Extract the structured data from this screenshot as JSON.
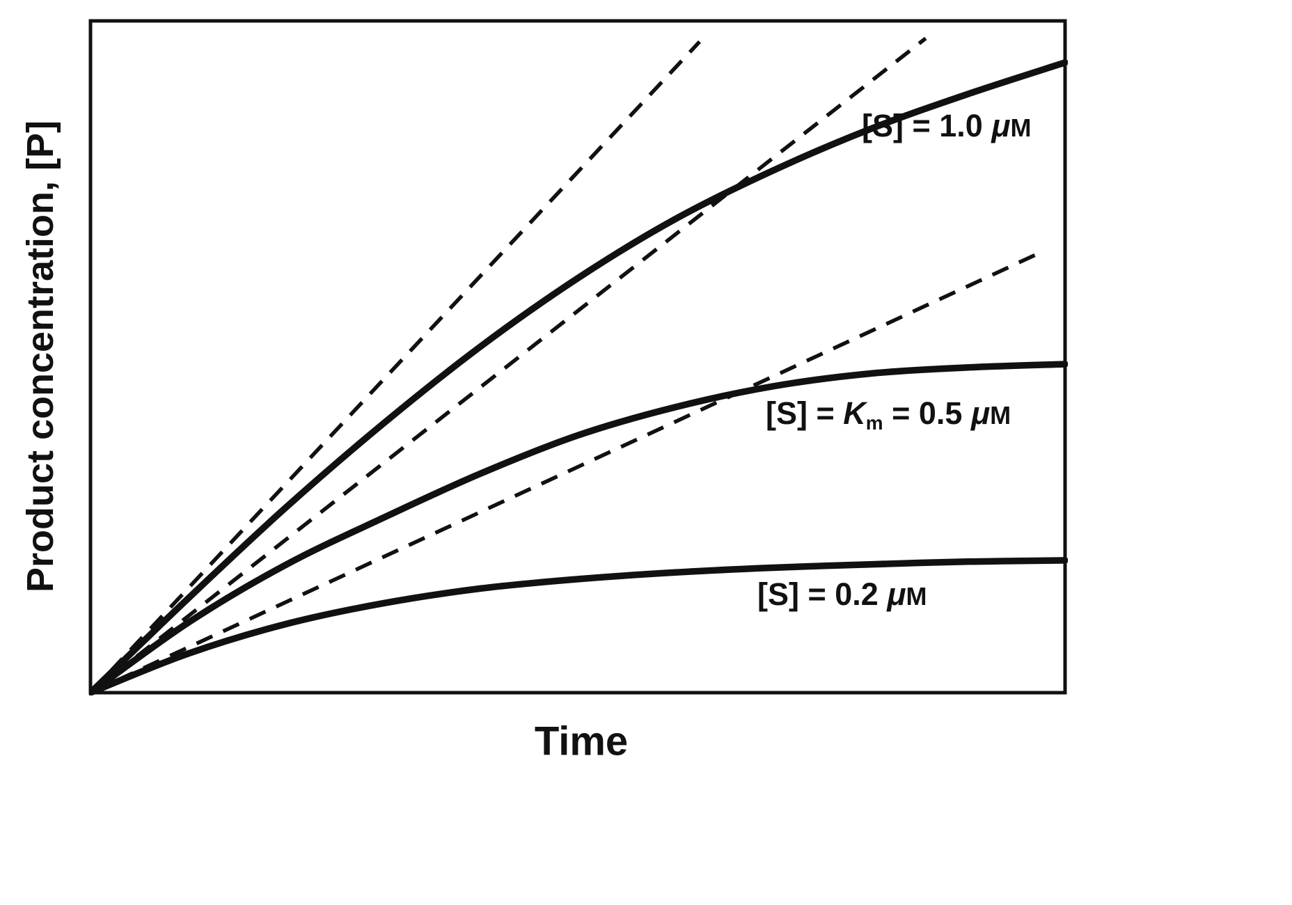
{
  "figure": {
    "background_color": "#ffffff",
    "line_color": "#111111"
  },
  "chart_data": {
    "type": "line",
    "title": "",
    "xlabel": "Time",
    "ylabel": "Product concentration, [P]",
    "x_range": [
      0,
      10
    ],
    "y_range": [
      0,
      100
    ],
    "axes_note": "axes are unlabeled/arbitrary units; no ticks, no gridlines",
    "grid": false,
    "legend_position": "labels next to curves",
    "series": [
      {
        "name": "[S] = 1.0 uM",
        "label_text": "[S] = 1.0 μM",
        "style": "solid",
        "x": [
          0,
          1,
          2,
          3,
          4,
          5,
          6,
          7,
          8,
          9,
          10
        ],
        "y": [
          0,
          14,
          27.5,
          40,
          51.5,
          61.7,
          70.5,
          77.7,
          83.9,
          89.1,
          93.8
        ],
        "label_parts": [
          {
            "t": "[S] = 1.0 "
          },
          {
            "t": "μ",
            "style": "italic"
          },
          {
            "t": "M",
            "style": "smallcap"
          }
        ]
      },
      {
        "name": "[S] = Km = 0.5 uM",
        "label_text": "[S] = Km = 0.5 μM",
        "style": "solid",
        "x": [
          0,
          1,
          2,
          3,
          4,
          5,
          6,
          7,
          8,
          9,
          10
        ],
        "y": [
          0,
          10.4,
          19.0,
          26.0,
          32.6,
          38.3,
          42.5,
          45.6,
          47.5,
          48.4,
          48.9
        ],
        "label_parts": [
          {
            "t": "[S] = "
          },
          {
            "t": "K",
            "style": "italic"
          },
          {
            "t": "m",
            "style": "sub"
          },
          {
            "t": " = 0.5 "
          },
          {
            "t": "μ",
            "style": "italic"
          },
          {
            "t": "M",
            "style": "smallcap"
          }
        ]
      },
      {
        "name": "[S] = 0.2 uM",
        "label_text": "[S] = 0.2 μM",
        "style": "solid",
        "x": [
          0,
          1,
          2,
          3,
          4,
          5,
          6,
          7,
          8,
          9,
          10
        ],
        "y": [
          0,
          5.8,
          10.2,
          13.3,
          15.5,
          16.9,
          17.9,
          18.6,
          19.1,
          19.5,
          19.7
        ],
        "label_parts": [
          {
            "t": "[S] = 0.2 "
          },
          {
            "t": "μ",
            "style": "italic"
          },
          {
            "t": "M",
            "style": "smallcap"
          }
        ]
      }
    ],
    "tangents": [
      {
        "name": "initial-rate tangent for [S] = 1.0 uM",
        "style": "dashed",
        "from": [
          0,
          0
        ],
        "to": [
          6.25,
          96.9
        ]
      },
      {
        "name": "initial-rate tangent for [S] = 0.5 uM",
        "style": "dashed",
        "from": [
          0,
          0
        ],
        "to": [
          8.57,
          97.4
        ]
      },
      {
        "name": "initial-rate tangent for [S] = 0.2 uM",
        "style": "dashed",
        "from": [
          0,
          0
        ],
        "to": [
          9.79,
          65.8
        ]
      }
    ]
  }
}
